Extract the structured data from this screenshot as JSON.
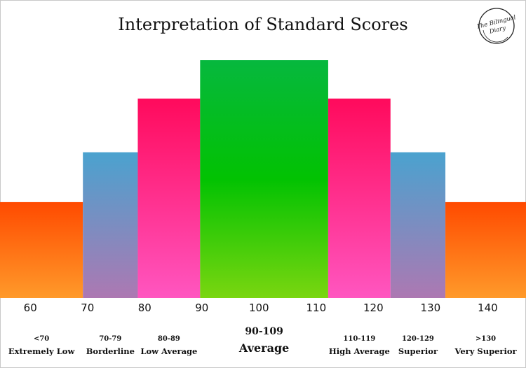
{
  "chart_data": {
    "type": "bar",
    "title": "Interpretation of Standard Scores",
    "xlabel": "",
    "ylabel": "",
    "x_ticks": [
      60,
      70,
      80,
      90,
      100,
      110,
      120,
      130,
      140
    ],
    "xlim": [
      54.7,
      146.7
    ],
    "ylim": [
      0,
      6
    ],
    "grid": false,
    "bars": [
      {
        "range": "<70",
        "category": "Extremely Low",
        "x_start": 54.7,
        "x_end": 69.2,
        "height": 2.5,
        "gradient": [
          "#ff4a00",
          "#ff9a2a"
        ]
      },
      {
        "range": "70-79",
        "category": "Borderline",
        "x_start": 69.2,
        "x_end": 78.8,
        "height": 3.8,
        "gradient": [
          "#4aa2cf",
          "#ad78b2"
        ]
      },
      {
        "range": "80-89",
        "category": "Low Average",
        "x_start": 78.8,
        "x_end": 89.7,
        "height": 5.2,
        "gradient": [
          "#ff0a5c",
          "#ff56c0"
        ]
      },
      {
        "range": "90-109",
        "category": "Average",
        "x_start": 89.7,
        "x_end": 112.1,
        "height": 6.2,
        "gradient": [
          "#06b83e",
          "#02c202",
          "#7ad610"
        ],
        "emphasis": true
      },
      {
        "range": "110-119",
        "category": "High Average",
        "x_start": 112.1,
        "x_end": 123.0,
        "height": 5.2,
        "gradient": [
          "#ff0a5c",
          "#ff56c0"
        ]
      },
      {
        "range": "120-129",
        "category": "Superior",
        "x_start": 123.0,
        "x_end": 132.6,
        "height": 3.8,
        "gradient": [
          "#4aa2cf",
          "#ad78b2"
        ]
      },
      {
        "range": ">130",
        "category": "Very Superior",
        "x_start": 132.6,
        "x_end": 146.7,
        "height": 2.5,
        "gradient": [
          "#ff4a00",
          "#ff9a2a"
        ]
      }
    ]
  },
  "logo": {
    "line1": "The Bilingual",
    "line2": "Diary"
  }
}
